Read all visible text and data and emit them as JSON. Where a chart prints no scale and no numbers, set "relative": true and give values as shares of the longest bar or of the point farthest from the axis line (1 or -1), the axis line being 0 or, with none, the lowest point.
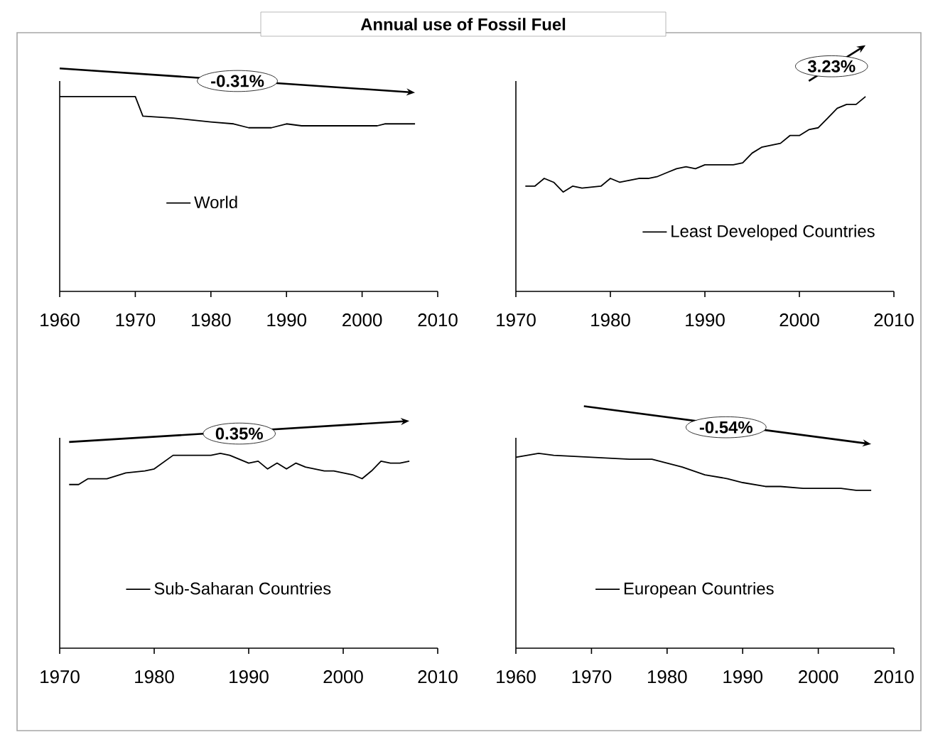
{
  "chart_data": [
    {
      "type": "line",
      "title": "Annual use of Fossil Fuel",
      "relative": true,
      "legend": "center",
      "xlim": [
        1960,
        2010
      ],
      "xticks": [
        1960,
        1970,
        1980,
        1990,
        2000,
        2010
      ],
      "annotations": [
        "-0.31%"
      ],
      "series": [
        {
          "name": "World",
          "color": "#000000",
          "x": [
            1960,
            1970,
            1971,
            1975,
            1980,
            1983,
            1985,
            1988,
            1990,
            1992,
            2002,
            2003,
            2007
          ],
          "values": [
            1.0,
            1.0,
            0.9,
            0.89,
            0.87,
            0.86,
            0.84,
            0.84,
            0.86,
            0.85,
            0.85,
            0.86,
            0.86
          ]
        }
      ]
    },
    {
      "type": "line",
      "relative": true,
      "legend": "bottom right",
      "xlim": [
        1970,
        2010
      ],
      "xticks": [
        1970,
        1980,
        1990,
        2000,
        2010
      ],
      "annotations": [
        "3.23%"
      ],
      "series": [
        {
          "name": "Least Developed Countries",
          "color": "#000000",
          "x": [
            1971,
            1972,
            1973,
            1974,
            1975,
            1976,
            1977,
            1979,
            1980,
            1981,
            1983,
            1984,
            1985,
            1986,
            1987,
            1988,
            1989,
            1990,
            1991,
            1992,
            1993,
            1994,
            1995,
            1996,
            1997,
            1998,
            1999,
            2000,
            2001,
            2002,
            2003,
            2004,
            2005,
            2006,
            2007
          ],
          "values": [
            0.54,
            0.54,
            0.58,
            0.56,
            0.51,
            0.54,
            0.53,
            0.54,
            0.58,
            0.56,
            0.58,
            0.58,
            0.59,
            0.61,
            0.63,
            0.64,
            0.63,
            0.65,
            0.65,
            0.65,
            0.65,
            0.66,
            0.71,
            0.74,
            0.75,
            0.76,
            0.8,
            0.8,
            0.83,
            0.84,
            0.89,
            0.94,
            0.96,
            0.96,
            1.0
          ]
        }
      ]
    },
    {
      "type": "line",
      "relative": true,
      "legend": "bottom",
      "xlim": [
        1970,
        2010
      ],
      "xticks": [
        1970,
        1980,
        1990,
        2000,
        2010
      ],
      "annotations": [
        "0.35%"
      ],
      "series": [
        {
          "name": "Sub-Saharan Countries",
          "color": "#000000",
          "x": [
            1971,
            1972,
            1973,
            1975,
            1977,
            1979,
            1980,
            1982,
            1983,
            1984,
            1985,
            1986,
            1987,
            1988,
            1989,
            1990,
            1991,
            1992,
            1993,
            1994,
            1995,
            1996,
            1997,
            1998,
            1999,
            2000,
            2001,
            2002,
            2003,
            2004,
            2005,
            2006,
            2007
          ],
          "values": [
            0.84,
            0.84,
            0.87,
            0.87,
            0.9,
            0.91,
            0.92,
            0.99,
            0.99,
            0.99,
            0.99,
            0.99,
            1.0,
            0.99,
            0.97,
            0.95,
            0.96,
            0.92,
            0.95,
            0.92,
            0.95,
            0.93,
            0.92,
            0.91,
            0.91,
            0.9,
            0.89,
            0.87,
            0.91,
            0.96,
            0.95,
            0.95,
            0.96
          ]
        }
      ]
    },
    {
      "type": "line",
      "relative": true,
      "legend": "bottom",
      "xlim": [
        1960,
        2010
      ],
      "xticks": [
        1960,
        1970,
        1980,
        1990,
        2000,
        2010
      ],
      "annotations": [
        "-0.54%"
      ],
      "series": [
        {
          "name": "European Countries",
          "color": "#000000",
          "x": [
            1960,
            1963,
            1965,
            1970,
            1975,
            1978,
            1980,
            1982,
            1985,
            1988,
            1990,
            1993,
            1995,
            1998,
            2000,
            2003,
            2005,
            2007
          ],
          "values": [
            0.98,
            1.0,
            0.99,
            0.98,
            0.97,
            0.97,
            0.95,
            0.93,
            0.89,
            0.87,
            0.85,
            0.83,
            0.83,
            0.82,
            0.82,
            0.82,
            0.81,
            0.81
          ]
        }
      ]
    }
  ]
}
